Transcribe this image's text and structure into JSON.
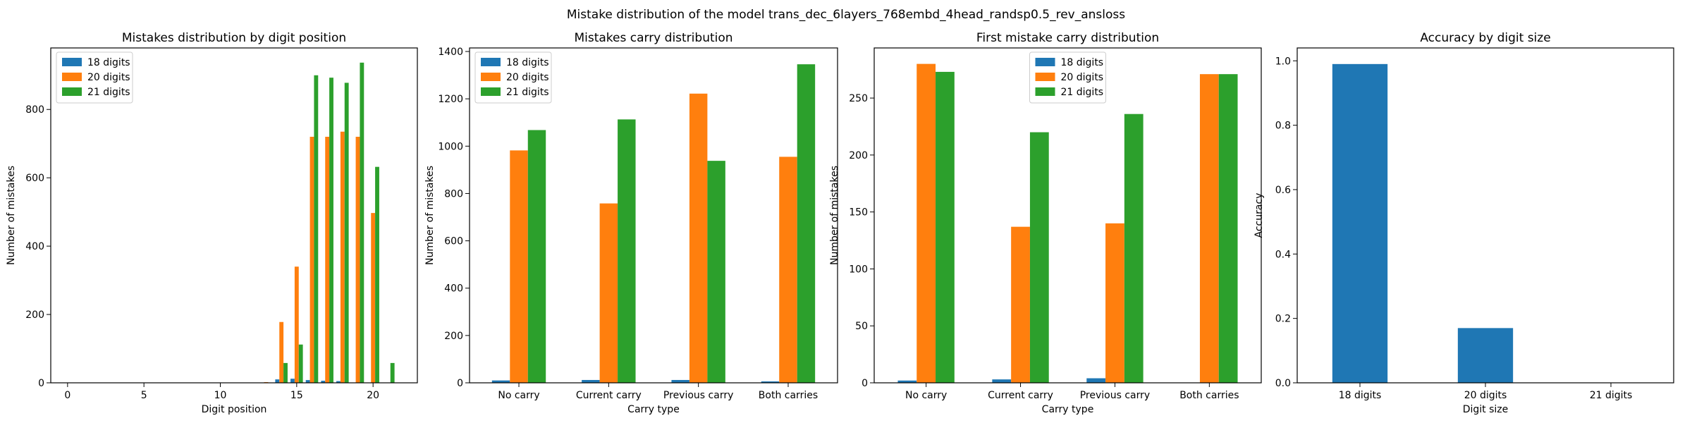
{
  "figure_title": "Mistake distribution of the model trans_dec_6layers_768embd_4head_randsp0.5_rev_ansloss",
  "colors": {
    "18 digits": "#1f77b4",
    "20 digits": "#ff7f0e",
    "21 digits": "#2ca02c"
  },
  "chart_data": [
    {
      "type": "bar",
      "title": "Mistakes distribution by digit position",
      "xlabel": "Digit position",
      "ylabel": "Number of mistakes",
      "xlim": [
        -1.1,
        22.9
      ],
      "ylim": [
        0,
        980
      ],
      "xticks": [
        0,
        5,
        10,
        15,
        20
      ],
      "yticks": [
        0,
        200,
        400,
        600,
        800
      ],
      "legend": "top-left",
      "x": [
        0,
        1,
        2,
        3,
        4,
        5,
        6,
        7,
        8,
        9,
        10,
        11,
        12,
        13,
        14,
        15,
        16,
        17,
        18,
        19,
        20,
        21
      ],
      "series": [
        {
          "name": "18 digits",
          "values": [
            0,
            0,
            0,
            0,
            0,
            0,
            0,
            0,
            0,
            0,
            0,
            0,
            0,
            0,
            10,
            12,
            8,
            6,
            5,
            0,
            0,
            0
          ]
        },
        {
          "name": "20 digits",
          "values": [
            0,
            0,
            0,
            0,
            0,
            0,
            0,
            0,
            0,
            0,
            0,
            0,
            0,
            2,
            178,
            340,
            720,
            720,
            735,
            720,
            497,
            0
          ]
        },
        {
          "name": "21 digits",
          "values": [
            0,
            0,
            0,
            0,
            0,
            0,
            0,
            0,
            0,
            0,
            0,
            0,
            0,
            0,
            58,
            112,
            900,
            893,
            878,
            937,
            632,
            58
          ]
        }
      ]
    },
    {
      "type": "bar",
      "title": "Mistakes carry distribution",
      "xlabel": "Carry type",
      "ylabel": "Number of mistakes",
      "ylim": [
        0,
        1415
      ],
      "yticks": [
        0,
        200,
        400,
        600,
        800,
        1000,
        1200,
        1400
      ],
      "legend": "top-left",
      "categories": [
        "No carry",
        "Current carry",
        "Previous carry",
        "Both carries"
      ],
      "series": [
        {
          "name": "18 digits",
          "values": [
            10,
            12,
            12,
            6
          ]
        },
        {
          "name": "20 digits",
          "values": [
            982,
            758,
            1222,
            955
          ]
        },
        {
          "name": "21 digits",
          "values": [
            1068,
            1113,
            938,
            1346
          ]
        }
      ]
    },
    {
      "type": "bar",
      "title": "First mistake carry distribution",
      "xlabel": "Carry type",
      "ylabel": "Number of mistakes",
      "ylim": [
        0,
        294
      ],
      "yticks": [
        0,
        50,
        100,
        150,
        200,
        250
      ],
      "legend": "top-center",
      "categories": [
        "No carry",
        "Current carry",
        "Previous carry",
        "Both carries"
      ],
      "series": [
        {
          "name": "18 digits",
          "values": [
            2,
            3,
            4,
            0
          ]
        },
        {
          "name": "20 digits",
          "values": [
            280,
            137,
            140,
            271
          ]
        },
        {
          "name": "21 digits",
          "values": [
            273,
            220,
            236,
            271
          ]
        }
      ]
    },
    {
      "type": "bar",
      "title": "Accuracy by digit size",
      "xlabel": "Digit size",
      "ylabel": "Accuracy",
      "ylim": [
        0,
        1.04
      ],
      "yticks": [
        0.0,
        0.2,
        0.4,
        0.6,
        0.8,
        1.0
      ],
      "categories": [
        "18 digits",
        "20 digits",
        "21 digits"
      ],
      "values": [
        0.99,
        0.17,
        0.0
      ]
    }
  ]
}
